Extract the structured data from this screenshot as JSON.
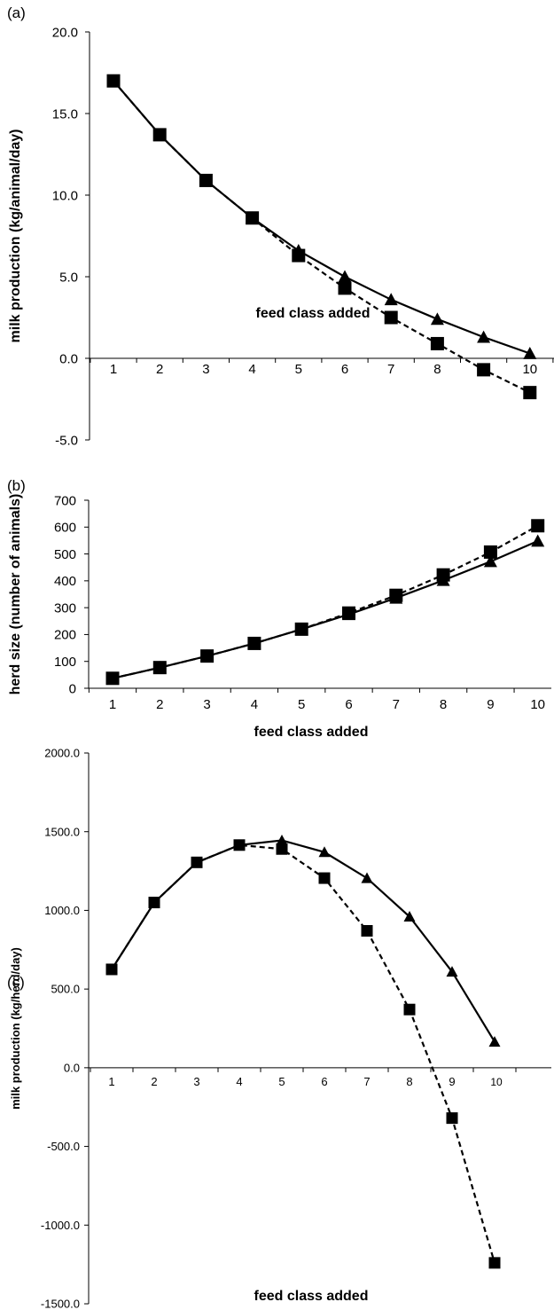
{
  "chart_data": [
    {
      "type": "line",
      "panel_label": "(a)",
      "xlabel": "feed class added",
      "ylabel": "milk production (kg/animal/day)",
      "categories": [
        "1",
        "2",
        "3",
        "4",
        "5",
        "6",
        "7",
        "8",
        "9",
        "10"
      ],
      "ylim": [
        -5,
        20
      ],
      "yticks": [
        "-5.0",
        "0.0",
        "5.0",
        "10.0",
        "15.0",
        "20.0"
      ],
      "grid": false,
      "series": [
        {
          "marker": "triangle",
          "line": "solid",
          "values": [
            17.0,
            13.7,
            10.9,
            8.6,
            6.6,
            5.0,
            3.6,
            2.4,
            1.3,
            0.3
          ]
        },
        {
          "marker": "square",
          "line": "dashed",
          "values": [
            17.0,
            13.7,
            10.9,
            8.6,
            6.3,
            4.3,
            2.5,
            0.9,
            -0.7,
            -2.1
          ]
        }
      ]
    },
    {
      "type": "line",
      "panel_label": "(b)",
      "xlabel": "feed class added",
      "ylabel": "herd size (number of animals)",
      "categories": [
        "1",
        "2",
        "3",
        "4",
        "5",
        "6",
        "7",
        "8",
        "9",
        "10"
      ],
      "ylim": [
        0,
        700
      ],
      "yticks": [
        "0",
        "100",
        "200",
        "300",
        "400",
        "500",
        "600",
        "700"
      ],
      "grid": false,
      "series": [
        {
          "marker": "triangle",
          "line": "solid",
          "values": [
            37,
            77,
            120,
            167,
            220,
            275,
            336,
            402,
            472,
            548
          ]
        },
        {
          "marker": "square",
          "line": "dashed",
          "values": [
            37,
            77,
            120,
            167,
            220,
            280,
            346,
            422,
            507,
            605
          ]
        }
      ]
    },
    {
      "type": "line",
      "panel_label": "(c)",
      "xlabel": "feed class added",
      "ylabel": "milk production (kg/herd/day)",
      "categories": [
        "1",
        "2",
        "3",
        "4",
        "5",
        "6",
        "7",
        "8",
        "9",
        "10"
      ],
      "ylim": [
        -1500,
        2000
      ],
      "yticks": [
        "-1500.0",
        "-1000.0",
        "-500.0",
        "0.0",
        "500.0",
        "1000.0",
        "1500.0",
        "2000.0"
      ],
      "grid": false,
      "series": [
        {
          "marker": "triangle",
          "line": "solid",
          "values": [
            625,
            1050,
            1305,
            1415,
            1445,
            1370,
            1205,
            960,
            610,
            165
          ]
        },
        {
          "marker": "square",
          "line": "dashed",
          "values": [
            625,
            1050,
            1305,
            1415,
            1390,
            1205,
            870,
            370,
            -320,
            -1240
          ]
        }
      ]
    }
  ]
}
